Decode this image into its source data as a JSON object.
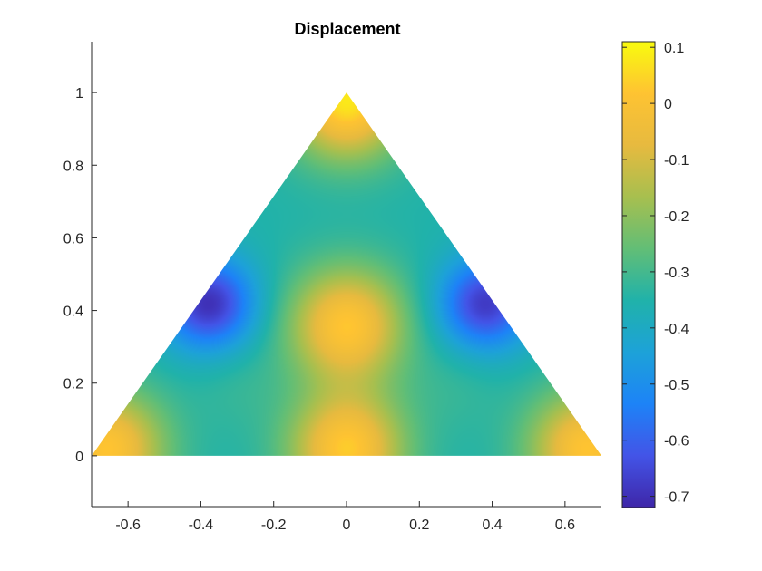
{
  "chart_data": {
    "type": "heatmap",
    "subtype": "filled-contour-on-triangle",
    "title": "Displacement",
    "xlabel": "",
    "ylabel": "",
    "xlim": [
      -0.7,
      0.7
    ],
    "ylim": [
      -0.14,
      1.14
    ],
    "xticks": [
      -0.6,
      -0.4,
      -0.2,
      0,
      0.2,
      0.4,
      0.6
    ],
    "xtick_labels": [
      "-0.6",
      "-0.4",
      "-0.2",
      "0",
      "0.2",
      "0.4",
      "0.6"
    ],
    "yticks": [
      0,
      0.2,
      0.4,
      0.6,
      0.8,
      1
    ],
    "ytick_labels": [
      "0",
      "0.2",
      "0.4",
      "0.6",
      "0.8",
      "1"
    ],
    "domain_vertices": [
      [
        -0.7,
        0
      ],
      [
        0.7,
        0
      ],
      [
        0,
        1
      ]
    ],
    "colormap": "parula",
    "colormap_stops": [
      "#3e26a8",
      "#4354e7",
      "#1d83f7",
      "#1da2d8",
      "#20b2aa",
      "#62be76",
      "#a7bf4f",
      "#e7ba3f",
      "#fec332",
      "#f9fb0e"
    ],
    "clim": [
      -0.72,
      0.11
    ],
    "colorbar": {
      "ticks": [
        0.1,
        0,
        -0.1,
        -0.2,
        -0.3,
        -0.4,
        -0.5,
        -0.6,
        -0.7
      ],
      "labels": [
        "0.1",
        "0",
        "-0.1",
        "-0.2",
        "-0.3",
        "-0.4",
        "-0.5",
        "-0.6",
        "-0.7"
      ]
    },
    "field_features": [
      {
        "x": 0.0,
        "y": 0.98,
        "value": 0.08,
        "kind": "peak"
      },
      {
        "x": 0.0,
        "y": 0.36,
        "value": 0.02,
        "kind": "peak"
      },
      {
        "x": 0.0,
        "y": 0.02,
        "value": 0.03,
        "kind": "peak"
      },
      {
        "x": -0.66,
        "y": 0.02,
        "value": 0.02,
        "kind": "peak"
      },
      {
        "x": 0.66,
        "y": 0.02,
        "value": 0.02,
        "kind": "peak"
      },
      {
        "x": -0.38,
        "y": 0.42,
        "value": -0.7,
        "kind": "trough"
      },
      {
        "x": 0.38,
        "y": 0.42,
        "value": -0.68,
        "kind": "trough"
      },
      {
        "x": 0.0,
        "y": 0.66,
        "value": -0.35,
        "kind": "trough"
      },
      {
        "x": -0.3,
        "y": 0.2,
        "value": -0.32,
        "kind": "trough"
      },
      {
        "x": 0.3,
        "y": 0.2,
        "value": -0.32,
        "kind": "trough"
      }
    ],
    "colors": {
      "axis": "#262626",
      "background": "#ffffff"
    }
  }
}
